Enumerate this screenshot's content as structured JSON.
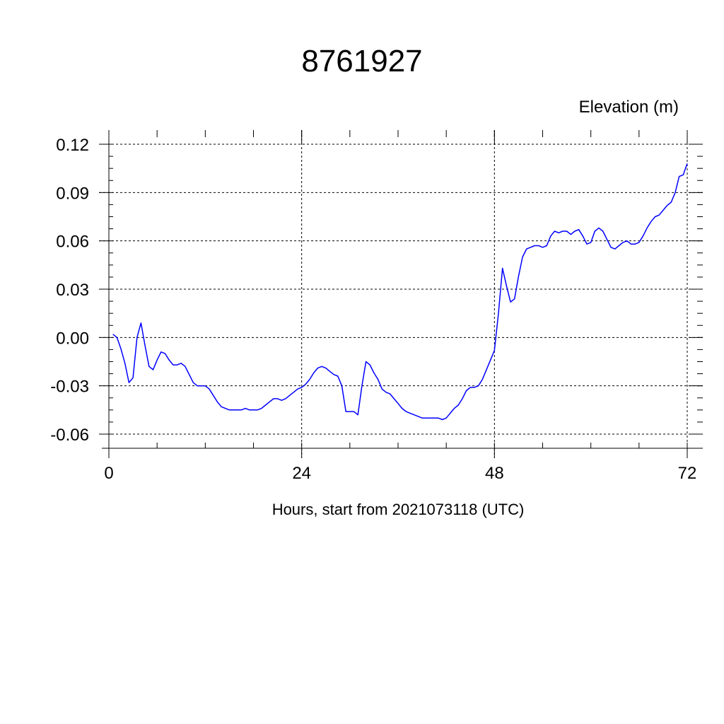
{
  "chart_data": {
    "type": "line",
    "title": "8761927",
    "ylabel": "Elevation (m)",
    "xlabel": "Hours, start from 2021073118 (UTC)",
    "xlim": [
      0,
      72
    ],
    "ylim": [
      -0.06,
      0.12
    ],
    "xticks": [
      0,
      24,
      48,
      72
    ],
    "xtick_labels": [
      "0",
      "24",
      "48",
      "72"
    ],
    "yticks": [
      -0.06,
      -0.03,
      0.0,
      0.03,
      0.06,
      0.09,
      0.12
    ],
    "ytick_labels": [
      "-0.06",
      "-0.03",
      "0.00",
      "0.03",
      "0.06",
      "0.09",
      "0.12"
    ],
    "grid": true,
    "series": [
      {
        "color": "#0000ff",
        "x": [
          0.5,
          1,
          1.5,
          2,
          2.5,
          3,
          3.5,
          4,
          4.5,
          5,
          5.5,
          6,
          6.5,
          7,
          7.5,
          8,
          8.5,
          9,
          9.5,
          10,
          10.5,
          11,
          11.5,
          12,
          12.5,
          13,
          13.5,
          14,
          14.5,
          15,
          15.5,
          16,
          16.5,
          17,
          17.5,
          18,
          18.5,
          19,
          19.5,
          20,
          20.5,
          21,
          21.5,
          22,
          22.5,
          23,
          23.5,
          24,
          24.5,
          25,
          25.5,
          26,
          26.5,
          27,
          27.5,
          28,
          28.5,
          29,
          29.5,
          30,
          30.5,
          31,
          31.5,
          32,
          32.5,
          33,
          33.5,
          34,
          34.5,
          35,
          35.5,
          36,
          36.5,
          37,
          37.5,
          38,
          38.5,
          39,
          39.5,
          40,
          40.5,
          41,
          41.5,
          42,
          42.5,
          43,
          43.5,
          44,
          44.5,
          45,
          45.5,
          46,
          46.5,
          47,
          47.5,
          48,
          48.5,
          49,
          49.5,
          50,
          50.5,
          51,
          51.5,
          52,
          52.5,
          53,
          53.5,
          54,
          54.5,
          55,
          55.5,
          56,
          56.5,
          57,
          57.5,
          58,
          58.5,
          59,
          59.5,
          60,
          60.5,
          61,
          61.5,
          62,
          62.5,
          63,
          63.5,
          64,
          64.5,
          65,
          65.5,
          66,
          66.5,
          67,
          67.5,
          68,
          68.5,
          69,
          69.5,
          70,
          70.5,
          71,
          71.5,
          72
        ],
        "y": [
          0.002,
          0.0,
          -0.007,
          -0.016,
          -0.028,
          -0.025,
          0.0,
          0.009,
          -0.005,
          -0.018,
          -0.02,
          -0.014,
          -0.009,
          -0.01,
          -0.014,
          -0.017,
          -0.017,
          -0.016,
          -0.018,
          -0.023,
          -0.028,
          -0.03,
          -0.03,
          -0.03,
          -0.032,
          -0.036,
          -0.04,
          -0.043,
          -0.044,
          -0.045,
          -0.045,
          -0.045,
          -0.045,
          -0.044,
          -0.045,
          -0.045,
          -0.045,
          -0.044,
          -0.042,
          -0.04,
          -0.038,
          -0.038,
          -0.039,
          -0.038,
          -0.036,
          -0.034,
          -0.032,
          -0.031,
          -0.029,
          -0.026,
          -0.022,
          -0.019,
          -0.018,
          -0.019,
          -0.021,
          -0.023,
          -0.024,
          -0.03,
          -0.046,
          -0.046,
          -0.046,
          -0.048,
          -0.03,
          -0.015,
          -0.017,
          -0.022,
          -0.026,
          -0.032,
          -0.034,
          -0.035,
          -0.038,
          -0.041,
          -0.044,
          -0.046,
          -0.047,
          -0.048,
          -0.049,
          -0.05,
          -0.05,
          -0.05,
          -0.05,
          -0.05,
          -0.051,
          -0.05,
          -0.047,
          -0.044,
          -0.042,
          -0.038,
          -0.033,
          -0.031,
          -0.031,
          -0.03,
          -0.026,
          -0.02,
          -0.014,
          -0.008,
          0.015,
          0.043,
          0.032,
          0.022,
          0.024,
          0.038,
          0.05,
          0.055,
          0.056,
          0.057,
          0.057,
          0.056,
          0.057,
          0.063,
          0.066,
          0.065,
          0.066,
          0.066,
          0.064,
          0.066,
          0.067,
          0.063,
          0.058,
          0.059,
          0.066,
          0.068,
          0.066,
          0.061,
          0.056,
          0.055,
          0.057,
          0.059,
          0.06,
          0.058,
          0.058,
          0.059,
          0.063,
          0.068,
          0.072,
          0.075,
          0.076,
          0.079,
          0.082,
          0.084,
          0.09,
          0.1,
          0.101,
          0.108
        ]
      }
    ]
  }
}
